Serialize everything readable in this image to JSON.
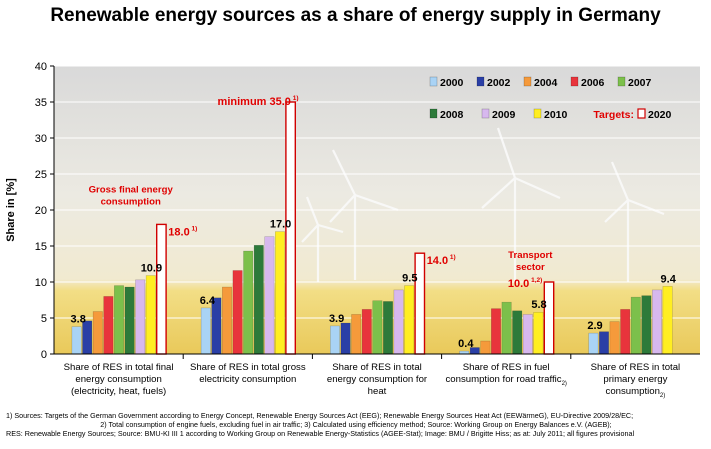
{
  "chart_data": {
    "type": "bar",
    "title": "Renewable energy sources as a share of energy supply in Germany",
    "ylabel": "Share in [%]",
    "ylim": [
      0,
      40
    ],
    "yticks": [
      0,
      5,
      10,
      15,
      20,
      25,
      30,
      35,
      40
    ],
    "grid": true,
    "legend_position": "top-right",
    "categories": [
      [
        "Share of RES in total final",
        "energy consumption",
        "(electricity, heat, fuels)"
      ],
      [
        "Share of RES in total gross",
        "electricity consumption"
      ],
      [
        "Share of RES in total",
        "energy consumption for",
        "heat"
      ],
      [
        "Share of RES in fuel",
        "consumption for road traffic"
      ],
      [
        "Share of RES in total",
        "primary energy",
        "consumption"
      ]
    ],
    "category_superscripts": [
      "",
      "",
      "",
      "2)",
      "2)"
    ],
    "series": [
      {
        "name": "2000",
        "color": "#a9d3f5",
        "values": [
          3.8,
          6.4,
          3.9,
          0.4,
          2.9
        ]
      },
      {
        "name": "2002",
        "color": "#2a3fa6",
        "values": [
          4.6,
          7.8,
          4.3,
          0.9,
          3.1
        ]
      },
      {
        "name": "2004",
        "color": "#f59a3b",
        "values": [
          5.9,
          9.3,
          5.5,
          1.8,
          4.5
        ]
      },
      {
        "name": "2006",
        "color": "#e8343c",
        "values": [
          8.0,
          11.6,
          6.2,
          6.3,
          6.2
        ]
      },
      {
        "name": "2007",
        "color": "#7cc04b",
        "values": [
          9.5,
          14.3,
          7.4,
          7.2,
          7.9
        ]
      },
      {
        "name": "2008",
        "color": "#2d7a3a",
        "values": [
          9.3,
          15.1,
          7.3,
          6.0,
          8.1
        ]
      },
      {
        "name": "2009",
        "color": "#d7b8ee",
        "values": [
          10.3,
          16.3,
          8.9,
          5.5,
          8.9
        ]
      },
      {
        "name": "2010",
        "color": "#ffee22",
        "values": [
          10.9,
          17.0,
          9.5,
          5.8,
          9.4
        ]
      },
      {
        "name": "2020",
        "color": "#ffffff",
        "values": [
          18.0,
          35.0,
          14.0,
          10.0,
          null
        ]
      }
    ],
    "data_labels": [
      {
        "text": "3.8",
        "category": 0,
        "series": "2000",
        "value": 3.8,
        "color": "#000000"
      },
      {
        "text": "10.9",
        "category": 0,
        "series": "2010",
        "value": 10.9,
        "color": "#000000"
      },
      {
        "text": "18.0",
        "sup": "1)",
        "category": 0,
        "series": "2020",
        "value": 18.0,
        "color": "#e00000"
      },
      {
        "text": "6.4",
        "category": 1,
        "series": "2000",
        "value": 6.4,
        "color": "#000000"
      },
      {
        "text": "17.0",
        "category": 1,
        "series": "2010",
        "value": 17.0,
        "color": "#000000"
      },
      {
        "text": "minimum 35.0",
        "sup": "1)",
        "category": 1,
        "series": "2020",
        "value": 35.0,
        "color": "#e00000"
      },
      {
        "text": "3.9",
        "category": 2,
        "series": "2000",
        "value": 3.9,
        "color": "#000000"
      },
      {
        "text": "9.5",
        "category": 2,
        "series": "2010",
        "value": 9.5,
        "color": "#000000"
      },
      {
        "text": "14.0",
        "sup": "1)",
        "category": 2,
        "series": "2020",
        "value": 14.0,
        "color": "#e00000"
      },
      {
        "text": "0.4",
        "category": 3,
        "series": "2000",
        "value": 0.4,
        "color": "#000000"
      },
      {
        "text": "5.8",
        "category": 3,
        "series": "2010",
        "value": 5.8,
        "color": "#000000"
      },
      {
        "text": "10.0",
        "sup": "1,2)",
        "category": 3,
        "series": "2020",
        "value": 10.0,
        "color": "#e00000"
      },
      {
        "text": "2.9",
        "category": 4,
        "series": "2000",
        "value": 2.9,
        "color": "#000000"
      },
      {
        "text": "9.4",
        "category": 4,
        "series": "2010",
        "value": 9.4,
        "color": "#000000"
      }
    ],
    "annotations": [
      {
        "lines": [
          "Gross final energy",
          "consumption"
        ],
        "category": 0,
        "color": "#e00000"
      },
      {
        "lines": [
          "Transport",
          "sector"
        ],
        "category": 3,
        "color": "#e00000"
      }
    ],
    "legend": {
      "targets_label": "Targets:"
    }
  },
  "footnotes": [
    "1) Sources: Targets of the German Government according to Energy Concept, Renewable Energy Sources Act (EEG); Renewable Energy Sources Heat Act (EEWärmeG), EU-Directive 2009/28/EC;",
    "2) Total consumption of engine fuels, excluding fuel in air traffic; 3) Calculated using efficiency method; Source: Working Group on Energy Balances e.V. (AGEB);",
    "RES: Renewable Energy Sources; Source: BMU-KI III 1 according to Working Group on Renewable Energy-Statistics (AGEE-Stat); Image: BMU / Brigitte Hiss; as at: July 2011; all figures provisional"
  ]
}
